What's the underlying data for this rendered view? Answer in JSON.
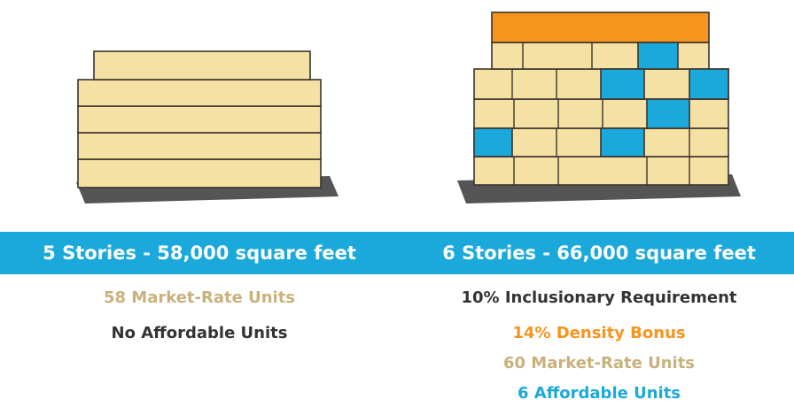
{
  "panels": [
    {
      "heading": "5 Stories - 58,000 square feet",
      "lines": [
        "58 Market-Rate Units",
        "No Affordable Units"
      ]
    },
    {
      "heading": "6 Stories - 66,000 square feet",
      "lines": [
        "10% Inclusionary Requirement",
        "14% Density Bonus",
        "60 Market-Rate Units",
        "6 Affordable Units"
      ]
    }
  ]
}
